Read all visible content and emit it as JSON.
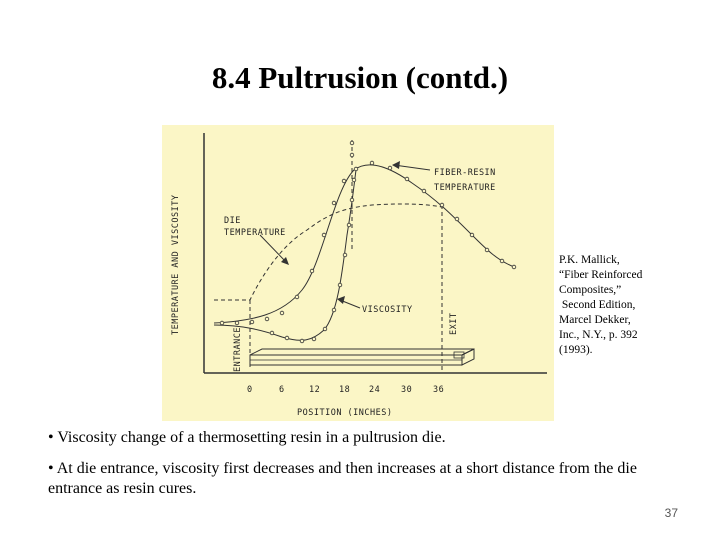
{
  "slide": {
    "title": "8.4 Pultrusion (contd.)",
    "page_number": "37"
  },
  "figure": {
    "labels": {
      "fiber_resin_temp_line1": "FIBER-RESIN",
      "fiber_resin_temp_line2": "TEMPERATURE",
      "die_temp_line1": "DIE",
      "die_temp_line2": "TEMPERATURE",
      "viscosity": "VISCOSITY",
      "y_axis": "TEMPERATURE AND VISCOSITY",
      "x_axis": "POSITION (INCHES)",
      "entrance": "ENTRANCE",
      "exit": "EXIT"
    },
    "x_ticks": [
      "0",
      "6",
      "12",
      "18",
      "24",
      "30",
      "36"
    ]
  },
  "citation": {
    "lines": [
      "P.K. Mallick,",
      "“Fiber Reinforced",
      "Composites,”",
      " Second Edition,",
      "Marcel Dekker,",
      "Inc., N.Y., p. 392",
      "(1993)."
    ]
  },
  "bullets": [
    "•  Viscosity change of a thermosetting resin in a pultrusion die.",
    "•  At die entrance, viscosity first decreases and then increases at a short distance from the die entrance as resin cures."
  ]
}
